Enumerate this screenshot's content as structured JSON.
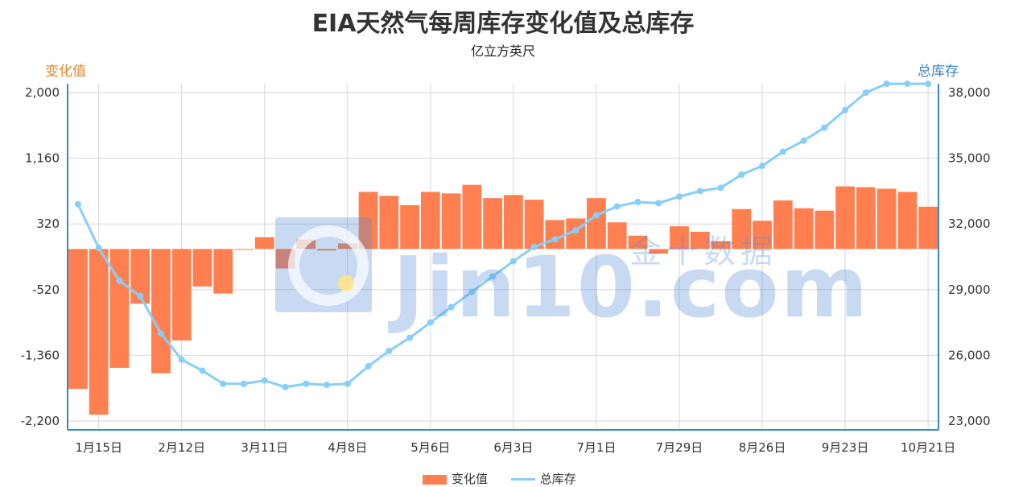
{
  "chart_data": {
    "type": "bar",
    "title": "EIA天然气每周库存变化值及总库存",
    "subtitle": "亿立方英尺",
    "y_left_label": "变化值",
    "y_right_label": "总库存",
    "y_left_ticks": [
      "2,000",
      "1,160",
      "320",
      "-520",
      "-1,360",
      "-2,200"
    ],
    "y_right_ticks": [
      "38,000",
      "35,000",
      "32,000",
      "29,000",
      "26,000",
      "23,000"
    ],
    "y_left_range": [
      -2200,
      2000
    ],
    "y_right_range": [
      23000,
      38000
    ],
    "x_tick_labels": [
      "1月15日",
      "2月12日",
      "3月11日",
      "4月8日",
      "5月6日",
      "6月3日",
      "7月1日",
      "7月29日",
      "8月26日",
      "9月23日",
      "10月21日"
    ],
    "grid": true,
    "legend_position": "bottom",
    "series": [
      {
        "name": "变化值",
        "type": "bar",
        "axis": "left",
        "color": "#ff7f50",
        "values": [
          -1790,
          -2120,
          -1520,
          -700,
          -1590,
          -1170,
          -480,
          -570,
          0,
          150,
          -250,
          120,
          -20,
          70,
          730,
          680,
          560,
          730,
          710,
          820,
          650,
          690,
          630,
          370,
          390,
          650,
          340,
          170,
          -60,
          290,
          220,
          100,
          510,
          360,
          620,
          520,
          490,
          800,
          790,
          770,
          730,
          540
        ]
      },
      {
        "name": "总库存",
        "type": "line",
        "axis": "right",
        "color": "#87cefa",
        "values": [
          32900,
          30900,
          29400,
          28700,
          27000,
          25800,
          25300,
          24700,
          24700,
          24850,
          24550,
          24700,
          24650,
          24700,
          25500,
          26200,
          26800,
          27500,
          28200,
          28900,
          29600,
          30300,
          30950,
          31300,
          31700,
          32400,
          32800,
          33000,
          32950,
          33250,
          33500,
          33650,
          34250,
          34650,
          35300,
          35800,
          36400,
          37200,
          38000,
          38400,
          38400,
          38400
        ]
      }
    ]
  },
  "watermark": {
    "text": "Jin10.com",
    "text_cn": "金十数据"
  }
}
